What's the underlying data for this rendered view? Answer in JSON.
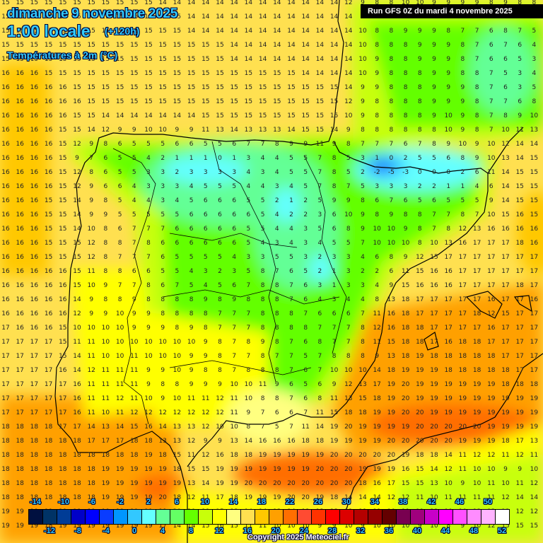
{
  "header": {
    "date": "dimanche 9 novembre 2025",
    "time": "1:00 locale",
    "lead": "(+120h)",
    "parameter": "Températures à 2m (°C)",
    "run": "Run GFS 0Z du mardi 4 novembre 2025"
  },
  "legend": {
    "colors": [
      "#001040",
      "#003366",
      "#003c96",
      "#0000c8",
      "#0000ff",
      "#0a3cff",
      "#0096ff",
      "#32c8ff",
      "#64ffff",
      "#64ff96",
      "#64ff64",
      "#64ff00",
      "#c8ff0a",
      "#ffff00",
      "#ffff80",
      "#ffe050",
      "#ffc800",
      "#ffa000",
      "#ff6e00",
      "#ff4b32",
      "#ff3200",
      "#ff0000",
      "#dc0000",
      "#b40000",
      "#960000",
      "#640000",
      "#780050",
      "#a0007d",
      "#c800c8",
      "#ff00ff",
      "#ff50ff",
      "#ff8cff",
      "#ffb4ff",
      "#ffffff"
    ],
    "top_labels": [
      "-14",
      "-10",
      "-6",
      "-2",
      "2",
      "6",
      "10",
      "14",
      "18",
      "22",
      "26",
      "30",
      "34",
      "38",
      "42",
      "46",
      "50"
    ],
    "bottom_labels": [
      "-12",
      "-8",
      "-4",
      "0",
      "4",
      "8",
      "12",
      "16",
      "20",
      "24",
      "28",
      "32",
      "36",
      "40",
      "44",
      "48",
      "52"
    ]
  },
  "copyright": "Copyright 2025 Meteociel.fr",
  "grid": {
    "rows": [
      "15 15 15 15 15 15 15 15 15 15 15 14 14 14 14 14 14 14 14 14 14 14 14 14 12 9 8 8 10 10 9 9 9 9 8 9 8 8",
      "15 15 15 15 15 15 15 15 15 15 15 15 15 14 14 14 14 14 14 14 14 14 14 14 14 9 8 8 9 9 9 8 7 7 6 7 6 5",
      "15 15 15 15 15 15 15 15 15 15 15 15 15 14 14 14 14 14 14 14 14 14 14 14 14 10 8 8 9 9 9 8 7 7 6 8 7 5",
      "15 15 15 15 15 15 15 15 15 15 15 15 15 15 15 15 14 14 14 14 14 14 14 14 14 10 8 8 8 9 9 9 8 7 6 7 6 4",
      "15 15 15 15 15 15 15 15 15 15 15 15 15 15 15 15 14 14 14 14 14 14 14 14 14 10 9 8 8 9 9 9 8 7 6 6 5 3",
      "16 16 16 15 15 15 15 15 15 15 15 15 15 15 15 15 15 15 15 15 15 14 14 14 14 10 9 8 8 8 9 9 8 8 7 5 3 4",
      "16 16 16 16 16 15 15 15 15 15 15 15 15 15 15 15 15 15 15 15 15 15 15 15 14 9 9 8 8 8 9 9 9 8 7 6 3 5",
      "16 16 16 16 16 16 15 15 15 15 15 15 15 15 15 15 15 15 15 15 15 15 15 15 12 9 8 8 8 8 9 9 9 8 7 7 6 8",
      "16 16 16 16 16 15 15 14 14 14 14 14 14 14 15 15 15 15 15 15 15 15 15 15 10 9 8 8 8 8 9 10 9 8 7 8 9 10",
      "16 16 16 16 15 15 14 12 9 9 10 10 9 9 11 13 14 13 13 13 14 15 15 14 9 8 8 8 8 8 8 10 9 8 7 10 11 13",
      "16 16 16 16 15 12 9 8 6 5 5 5 6 6 5 5 6 7 7 8 9 9 11 9 8 7 7 7 6 7 8 9 10 9 10 12 14 14",
      "16 16 16 16 15 9 7 6 5 5 4 2 1 1 1 0 1 3 4 4 5 5 7 8 5 3 1 0 2 5 5 6 8 9 10 13 14 15",
      "16 16 16 16 15 12 8 6 5 5 3 3 2 3 3 3 3 4 3 4 5 5 7 8 5 2 -2 -5 -3 0 0 0 2 6 11 14 15 15",
      "16 16 16 16 15 12 9 6 6 4 3 3 3 4 5 5 5 4 4 3 4 5 7 8 7 5 3 3 3 2 2 1 1 4 6 14 15 15",
      "16 16 16 15 15 14 9 8 5 4 4 3 4 5 6 6 6 5 5 2 1 2 5 9 9 8 6 7 6 5 6 5 5 5 9 14 15 15",
      "16 16 16 15 15 14 9 9 5 5 5 5 5 6 6 6 6 6 5 4 2 2 3 6 10 9 8 9 8 8 7 7 8 7 10 15 16 15",
      "16 16 16 15 15 14 10 8 6 7 7 7 6 6 6 6 6 5 5 4 4 3 5 6 8 9 10 10 9 8 7 8 12 13 16 16 16 16",
      "16 16 16 15 15 15 12 8 8 7 8 6 6 6 6 6 6 5 4 3 4 3 4 5 5 7 10 10 10 8 10 13 16 17 17 17 18 16",
      "16 16 16 15 15 15 12 8 7 7 7 6 5 5 5 5 4 3 3 5 5 3 2 3 3 4 6 8 9 12 15 17 17 17 17 17 17 17",
      "16 16 16 16 16 15 11 8 8 6 6 5 5 4 3 2 3 5 8 7 6 5 2 1 3 2 2 6 11 15 16 16 17 17 17 17 17 17",
      "16 16 16 16 16 15 10 9 7 7 8 6 7 5 4 5 6 7 8 8 7 6 3 1 3 3 4 9 15 16 16 16 17 17 17 17 18 17",
      "16 16 16 16 16 14 9 8 8 9 8 8 8 8 9 8 9 8 8 8 7 6 4 3 4 4 8 13 18 17 17 17 17 17 16 17 17 16",
      "16 16 16 16 16 12 9 9 10 9 9 8 8 8 8 7 7 7 8 8 8 7 6 6 6 7 11 16 18 17 17 17 17 18 12 15 17 17",
      "17 16 16 16 15 10 10 10 10 9 9 9 8 9 8 7 7 7 8 8 8 8 7 7 7 8 12 16 18 18 17 17 17 17 16 17 17 17",
      "17 17 17 17 15 11 11 10 10 10 10 10 10 10 9 8 7 8 9 8 7 6 8 7 7 8 11 15 18 18 17 16 18 18 17 17 17 17",
      "17 17 17 17 15 14 11 10 10 11 10 10 10 9 9 8 7 7 8 7 7 5 7 8 8 8 9 13 18 19 18 18 18 18 18 17 17 17",
      "17 17 17 17 16 14 12 11 11 11 9 9 10 9 8 8 7 8 8 8 7 6 7 10 10 10 14 18 19 19 19 18 18 18 18 18 17 17",
      "17 17 17 17 17 16 11 11 11 11 9 8 8 9 9 9 10 10 11 9 6 5 6 9 12 13 17 19 20 19 19 19 19 19 19 18 18 18",
      "17 17 17 17 17 16 11 11 12 11 10 9 10 11 11 12 11 10 8 8 7 6 8 11 13 15 18 19 20 19 19 19 19 19 19 19 19 19",
      "17 17 17 17 17 16 11 10 11 12 12 12 12 12 12 12 11 9 7 6 6 7 11 15 18 18 19 19 20 20 19 19 19 19 19 19 19 19",
      "18 18 18 18 17 17 14 13 14 15 16 14 13 13 12 10 10 8 7 5 7 11 14 19 20 19 19 19 19 20 20 20 20 20 19 19 19 19",
      "18 18 18 18 18 18 17 17 17 18 18 13 13 12 9 9 13 14 16 16 16 18 18 19 19 19 19 20 20 20 20 20 19 19 19 18 17 13",
      "18 18 18 18 18 18 18 18 18 18 19 18 15 11 12 16 18 18 19 19 19 19 19 20 20 20 20 20 19 18 18 14 11 12 12 11 12 11",
      "18 18 18 18 18 18 18 19 19 19 19 19 18 15 15 19 19 19 19 19 19 19 20 20 20 19 19 19 16 15 14 12 11 10 10 9 9 10",
      "18 18 18 18 18 18 18 19 19 19 19 19 19 13 14 19 19 20 20 20 20 20 20 20 20 18 16 17 15 15 13 10 9 10 11 10 11 12",
      "18 18 18 18 18 18 18 19 19 19 19 20 18 12 11 17 18 19 19 19 20 20 19 18 14 14 14 12 12 11 10 11 11 11 11 12 14 14",
      "19 19 19 19 19 19 19 19 19 19 19 19 20 20 19 15 13 14 14 13 14 12 12 12 12 11 11 10 11 11 11 10 10 12 12 12 12 12",
      "19 19 19 18 19 19 19 19 19 19 19 17 14 14 15 16 15 11 11 10 10 10 9 9 10 9 10 10 10 9 10 8 9 10 12 15 15 15"
    ]
  }
}
